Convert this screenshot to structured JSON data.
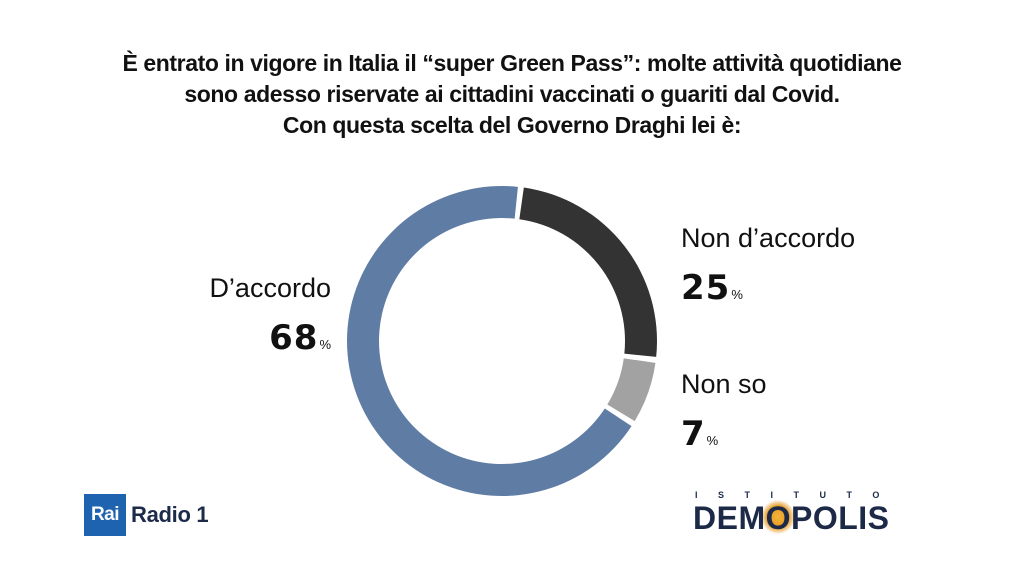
{
  "title_lines": [
    "È entrato in vigore in Italia il “super Green Pass”: molte attività quotidiane",
    "sono adesso riservate ai cittadini vaccinati o guariti dal Covid.",
    "Con questa scelta del Governo Draghi lei è:"
  ],
  "chart_data": {
    "type": "pie",
    "donut": true,
    "title": "È entrato in vigore in Italia il “super Green Pass”: molte attività quotidiane sono adesso riservate ai cittadini vaccinati o guariti dal Covid. Con questa scelta del Governo Draghi lei è:",
    "categories": [
      "D’accordo",
      "Non d’accordo",
      "Non so"
    ],
    "values": [
      68,
      25,
      7
    ],
    "unit": "%",
    "colors": [
      "#5f7ca5",
      "#333333",
      "#a2a2a2"
    ]
  },
  "labels": {
    "agree": {
      "name": "D’accordo",
      "value": "68",
      "unit": "%"
    },
    "disagree": {
      "name": "Non d’accordo",
      "value": "25",
      "unit": "%"
    },
    "dunno": {
      "name": "Non so",
      "value": "7",
      "unit": "%"
    }
  },
  "logos": {
    "rai_box": "Rai",
    "rai_radio": "Radio 1",
    "demopolis_top": "ISTITUTO",
    "demopolis_pre": "DEM",
    "demopolis_o": "O",
    "demopolis_post": "POLIS"
  }
}
